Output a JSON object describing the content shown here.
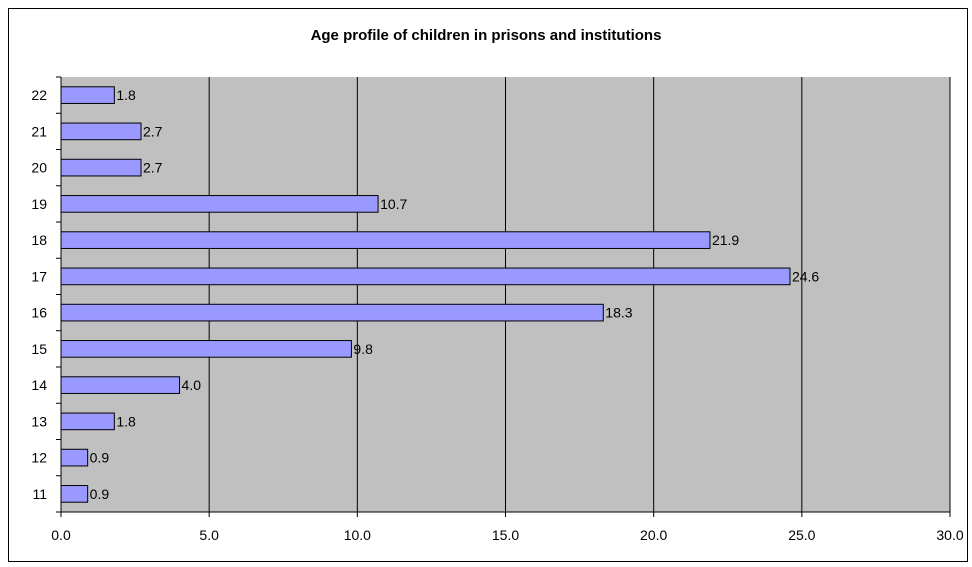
{
  "chart_data": {
    "type": "bar",
    "orientation": "horizontal",
    "title": "Age profile of children in prisons and institutions",
    "xlabel": "",
    "ylabel": "",
    "categories": [
      "11",
      "12",
      "13",
      "14",
      "15",
      "16",
      "17",
      "18",
      "19",
      "20",
      "21",
      "22"
    ],
    "values": [
      0.9,
      0.9,
      1.8,
      4.0,
      9.8,
      18.3,
      24.6,
      21.9,
      10.7,
      2.7,
      2.7,
      1.8
    ],
    "value_labels": [
      "0.9",
      "0.9",
      "1.8",
      "4.0",
      "9.8",
      "18.3",
      "24.6",
      "21.9",
      "10.7",
      "2.7",
      "2.7",
      "1.8"
    ],
    "xlim": [
      0,
      30
    ],
    "x_ticks": [
      "0.0",
      "5.0",
      "10.0",
      "15.0",
      "20.0",
      "25.0",
      "30.0"
    ],
    "grid": "vertical",
    "legend": "none",
    "colors": {
      "bar_fill": "#9999FF",
      "bar_stroke": "#000000",
      "plot_background": "#C0C0C0",
      "gridline": "#000000"
    }
  }
}
